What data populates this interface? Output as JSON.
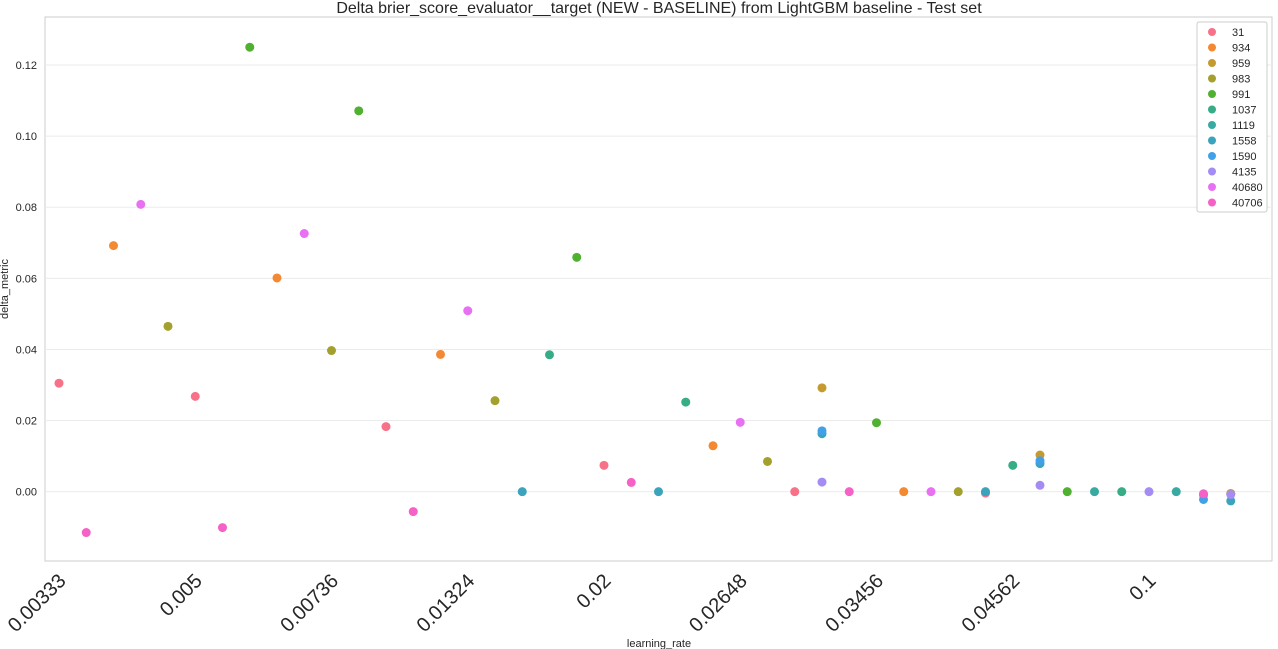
{
  "chart_data": {
    "type": "scatter",
    "title": "Delta brier_score_evaluator__target (NEW - BASELINE) from LightGBM baseline - Test set",
    "xlabel": "learning_rate",
    "ylabel": "delta_metric",
    "x_scale": "categorical",
    "x_tick_labels": [
      "0.00333",
      "0.005",
      "0.00736",
      "0.01324",
      "0.02",
      "0.02648",
      "0.03456",
      "0.04562",
      "0.1"
    ],
    "ylim": [
      -0.0195,
      0.1335
    ],
    "y_ticks": [
      0.0,
      0.02,
      0.04,
      0.06,
      0.08,
      0.1,
      0.12
    ],
    "y_tick_labels": [
      "0.00",
      "0.02",
      "0.04",
      "0.06",
      "0.08",
      "0.10",
      "0.12"
    ],
    "grid": true,
    "legend_position": "top-right",
    "series": [
      {
        "name": "31",
        "color": "#f77189",
        "points": [
          {
            "x": 0,
            "y": 0.0305
          },
          {
            "x": 5,
            "y": 0.0268
          },
          {
            "x": 12,
            "y": 0.0183
          },
          {
            "x": 20,
            "y": 0.0074
          },
          {
            "x": 27,
            "y": 0.0
          },
          {
            "x": 34,
            "y": -0.0004
          }
        ]
      },
      {
        "name": "934",
        "color": "#f38932",
        "points": [
          {
            "x": 2,
            "y": 0.0692
          },
          {
            "x": 8,
            "y": 0.0601
          },
          {
            "x": 14,
            "y": 0.0386
          },
          {
            "x": 24,
            "y": 0.0129
          },
          {
            "x": 31,
            "y": 0.0
          },
          {
            "x": 43,
            "y": -0.0005
          }
        ]
      },
      {
        "name": "959",
        "color": "#c59a2e",
        "points": [
          {
            "x": 28,
            "y": 0.0292
          },
          {
            "x": 36,
            "y": 0.0103
          },
          {
            "x": 43,
            "y": -0.0006
          }
        ]
      },
      {
        "name": "983",
        "color": "#a4a030",
        "points": [
          {
            "x": 4,
            "y": 0.0465
          },
          {
            "x": 10,
            "y": 0.0397
          },
          {
            "x": 16,
            "y": 0.0256
          },
          {
            "x": 26,
            "y": 0.0085
          },
          {
            "x": 33,
            "y": 0.0
          }
        ]
      },
      {
        "name": "991",
        "color": "#50b131",
        "points": [
          {
            "x": 7,
            "y": 0.125
          },
          {
            "x": 11,
            "y": 0.1071
          },
          {
            "x": 19,
            "y": 0.0659
          },
          {
            "x": 30,
            "y": 0.0194
          },
          {
            "x": 37,
            "y": 0.0
          }
        ]
      },
      {
        "name": "1037",
        "color": "#36ad86",
        "points": [
          {
            "x": 18,
            "y": 0.0385
          },
          {
            "x": 23,
            "y": 0.0252
          },
          {
            "x": 35,
            "y": 0.0074
          },
          {
            "x": 39,
            "y": 0.0
          },
          {
            "x": 42,
            "y": -0.0009
          }
        ]
      },
      {
        "name": "1119",
        "color": "#38aaa2",
        "points": [
          {
            "x": 38,
            "y": 0.0
          },
          {
            "x": 41,
            "y": 0.0
          }
        ]
      },
      {
        "name": "1558",
        "color": "#3ba3bb",
        "points": [
          {
            "x": 17,
            "y": 0.0
          },
          {
            "x": 22,
            "y": 0.0
          },
          {
            "x": 28,
            "y": 0.0163
          },
          {
            "x": 34,
            "y": 0.0
          },
          {
            "x": 36,
            "y": 0.0079
          },
          {
            "x": 43,
            "y": -0.0026
          }
        ]
      },
      {
        "name": "1590",
        "color": "#42a0e6",
        "points": [
          {
            "x": 28,
            "y": 0.0171
          },
          {
            "x": 36,
            "y": 0.0087
          },
          {
            "x": 42,
            "y": -0.0022
          }
        ]
      },
      {
        "name": "4135",
        "color": "#a48cf4",
        "points": [
          {
            "x": 28,
            "y": 0.0027
          },
          {
            "x": 36,
            "y": 0.0018
          },
          {
            "x": 40,
            "y": 0.0
          },
          {
            "x": 43,
            "y": -0.0008
          }
        ]
      },
      {
        "name": "40680",
        "color": "#e871f3",
        "points": [
          {
            "x": 3,
            "y": 0.0808
          },
          {
            "x": 9,
            "y": 0.0726
          },
          {
            "x": 15,
            "y": 0.0509
          },
          {
            "x": 25,
            "y": 0.0195
          },
          {
            "x": 32,
            "y": 0.0
          }
        ]
      },
      {
        "name": "40706",
        "color": "#f561c6",
        "points": [
          {
            "x": 1,
            "y": -0.0115
          },
          {
            "x": 6,
            "y": -0.0101
          },
          {
            "x": 13,
            "y": -0.0056
          },
          {
            "x": 21,
            "y": 0.0026
          },
          {
            "x": 29,
            "y": 0.0
          },
          {
            "x": 42,
            "y": -0.0006
          }
        ]
      }
    ]
  }
}
